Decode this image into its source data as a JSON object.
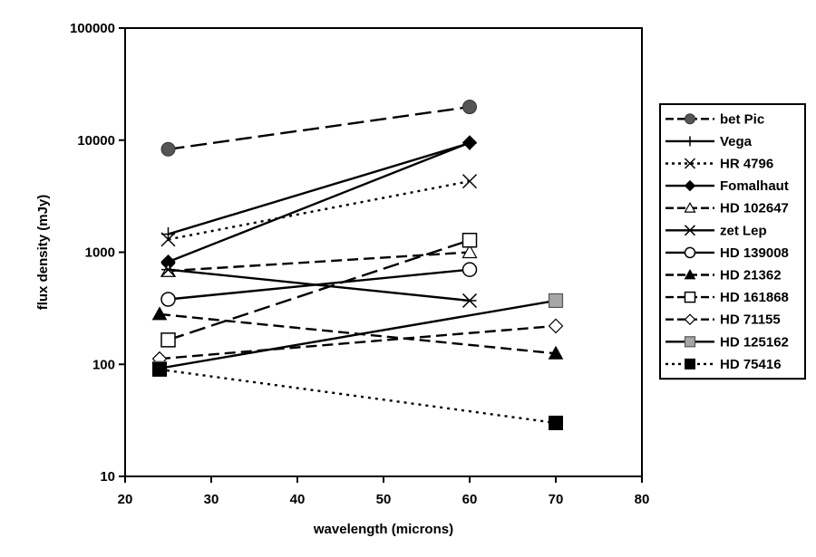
{
  "chart_data": {
    "type": "line",
    "xlabel": "wavelength (microns)",
    "ylabel": "flux density (mJy)",
    "x_axis": {
      "min": 20,
      "max": 80,
      "ticks": [
        20,
        30,
        40,
        50,
        60,
        70,
        80
      ],
      "tick_labels": [
        "20",
        "30",
        "40",
        "50",
        "60",
        "70",
        "80"
      ]
    },
    "y_axis": {
      "scale": "log",
      "min": 10,
      "max": 100000,
      "ticks": [
        10,
        100,
        1000,
        10000,
        100000
      ],
      "tick_labels": [
        "10",
        "100",
        "1000",
        "10000",
        "100000"
      ]
    },
    "grid": false,
    "legend_position": "right",
    "series": [
      {
        "name": "bet Pic",
        "x": [
          25,
          60
        ],
        "y": [
          8300,
          19800
        ],
        "line": "long-dash",
        "marker": "circle-filled-gray",
        "color": "#555555"
      },
      {
        "name": "Vega",
        "x": [
          25,
          60
        ],
        "y": [
          1450,
          9400
        ],
        "line": "solid",
        "marker": "plus",
        "color": "#000000"
      },
      {
        "name": "HR 4796",
        "x": [
          25,
          60
        ],
        "y": [
          1300,
          4300
        ],
        "line": "dotted",
        "marker": "x",
        "color": "#000000"
      },
      {
        "name": "Fomalhaut",
        "x": [
          25,
          60
        ],
        "y": [
          820,
          9500
        ],
        "line": "solid",
        "marker": "diamond-filled",
        "color": "#000000"
      },
      {
        "name": "HD 102647",
        "x": [
          25,
          60
        ],
        "y": [
          680,
          1000
        ],
        "line": "dash",
        "marker": "triangle-open",
        "color": "#000000"
      },
      {
        "name": "zet Lep",
        "x": [
          25,
          60
        ],
        "y": [
          700,
          370
        ],
        "line": "solid",
        "marker": "asterisk",
        "color": "#000000"
      },
      {
        "name": "HD 139008",
        "x": [
          25,
          60
        ],
        "y": [
          380,
          700
        ],
        "line": "solid",
        "marker": "circle-open",
        "color": "#000000"
      },
      {
        "name": "HD 21362",
        "x": [
          24,
          70
        ],
        "y": [
          280,
          125
        ],
        "line": "dash",
        "marker": "triangle-filled",
        "color": "#000000"
      },
      {
        "name": "HD 161868",
        "x": [
          25,
          60
        ],
        "y": [
          165,
          1280
        ],
        "line": "long-dash",
        "marker": "square-open",
        "color": "#000000"
      },
      {
        "name": "HD 71155",
        "x": [
          24,
          70
        ],
        "y": [
          112,
          220
        ],
        "line": "dash",
        "marker": "diamond-open",
        "color": "#000000"
      },
      {
        "name": "HD 125162",
        "x": [
          24,
          70
        ],
        "y": [
          92,
          370
        ],
        "line": "solid",
        "marker": "square-filled-gray",
        "color": "#999999"
      },
      {
        "name": "HD 75416",
        "x": [
          24,
          70
        ],
        "y": [
          90,
          30
        ],
        "line": "dotted",
        "marker": "square-filled",
        "color": "#000000"
      }
    ]
  }
}
